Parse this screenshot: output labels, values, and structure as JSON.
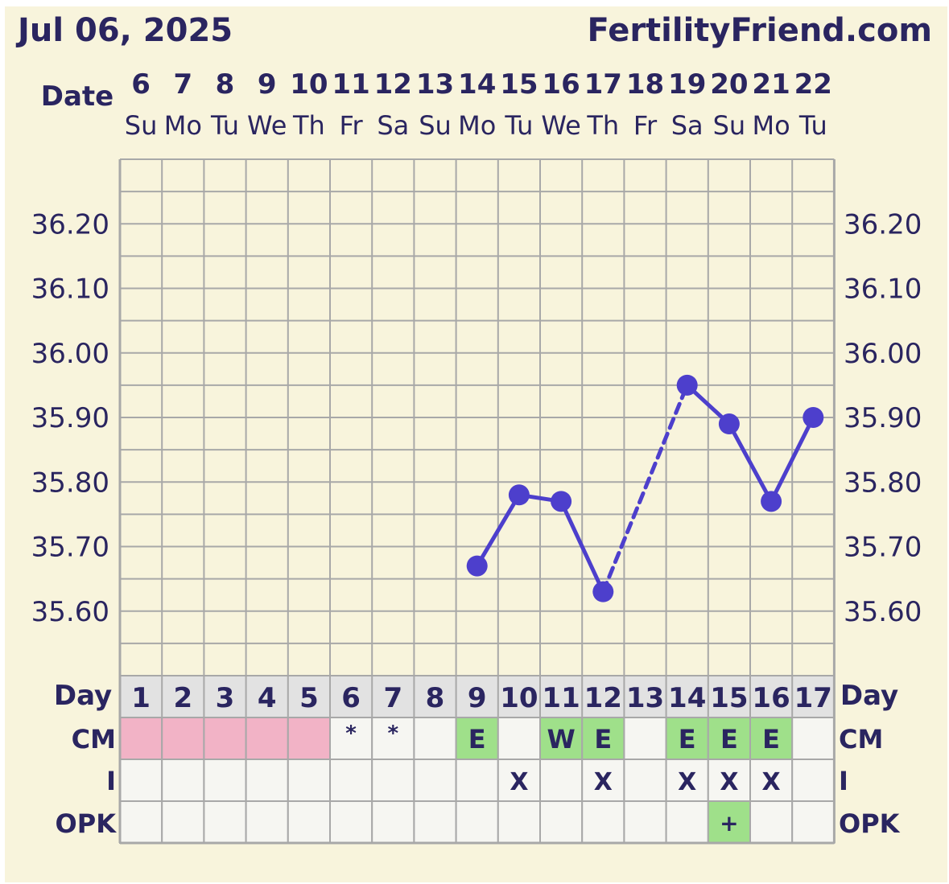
{
  "header": {
    "date": "Jul 06, 2025",
    "site": "FertilityFriend.com"
  },
  "labels": {
    "date_row": "Date",
    "day_row": "Day",
    "cm_row": "CM",
    "intercourse_row": "I",
    "opk_row": "OPK"
  },
  "colors": {
    "background": "#f8f4dc",
    "series": "#4d3fcc",
    "grid": "#a8a8a8",
    "day_row_fill": "#e2e2e2",
    "cell_fill": "#f6f6f2",
    "menstruation": "#f2b3c6",
    "fertile_cm": "#9fe08a",
    "opk_positive": "#9fe08a",
    "text": "#2a2560"
  },
  "chart_data": {
    "type": "line",
    "dates": [
      "6",
      "7",
      "8",
      "9",
      "10",
      "11",
      "12",
      "13",
      "14",
      "15",
      "16",
      "17",
      "18",
      "19",
      "20",
      "21",
      "22"
    ],
    "weekdays": [
      "Su",
      "Mo",
      "Tu",
      "We",
      "Th",
      "Fr",
      "Sa",
      "Su",
      "Mo",
      "Tu",
      "We",
      "Th",
      "Fr",
      "Sa",
      "Su",
      "Mo",
      "Tu"
    ],
    "cycle_days": [
      "1",
      "2",
      "3",
      "4",
      "5",
      "6",
      "7",
      "8",
      "9",
      "10",
      "11",
      "12",
      "13",
      "14",
      "15",
      "16",
      "17"
    ],
    "yticks": [
      "36.20",
      "36.10",
      "36.00",
      "35.90",
      "35.80",
      "35.70",
      "35.60"
    ],
    "ylim": [
      35.5,
      36.3
    ],
    "temperatures": [
      null,
      null,
      null,
      null,
      null,
      null,
      null,
      null,
      35.67,
      35.78,
      35.77,
      35.63,
      null,
      35.95,
      35.89,
      35.77,
      35.9
    ],
    "dashed_segments": [
      [
        11,
        13
      ]
    ],
    "cervical_mucus": [
      "",
      "",
      "",
      "",
      "",
      "*",
      "*",
      "",
      "E",
      "",
      "W",
      "E",
      "",
      "E",
      "E",
      "E",
      ""
    ],
    "menstruation": [
      true,
      true,
      true,
      true,
      true,
      false,
      false,
      false,
      false,
      false,
      false,
      false,
      false,
      false,
      false,
      false,
      false
    ],
    "intercourse": [
      "",
      "",
      "",
      "",
      "",
      "",
      "",
      "",
      "",
      "X",
      "",
      "X",
      "",
      "X",
      "X",
      "X",
      ""
    ],
    "opk": [
      "",
      "",
      "",
      "",
      "",
      "",
      "",
      "",
      "",
      "",
      "",
      "",
      "",
      "",
      "+",
      "",
      ""
    ]
  }
}
